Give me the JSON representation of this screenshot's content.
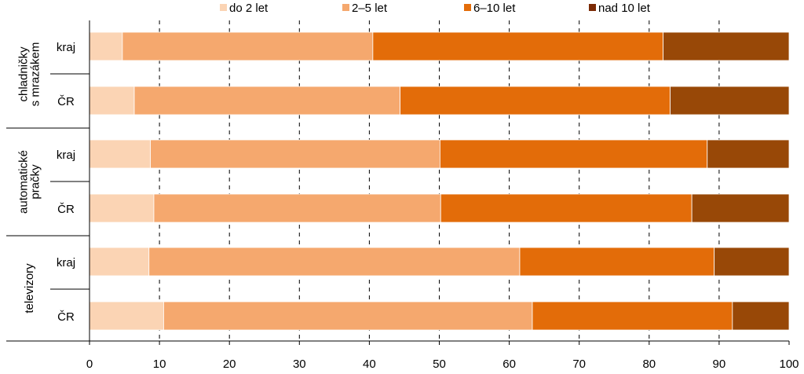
{
  "chart_data": {
    "type": "bar",
    "orientation": "horizontal",
    "stacked": true,
    "title": "",
    "xlabel": "",
    "ylabel": "",
    "xlim": [
      0,
      100
    ],
    "x_ticks": [
      "0",
      "10",
      "20",
      "30",
      "40",
      "50",
      "60",
      "70",
      "80",
      "90",
      "100"
    ],
    "legend_position": "top",
    "groups": [
      {
        "label": "chladničky s mrazákem",
        "label_lines": [
          "chladničky",
          "s mrazákem"
        ],
        "rows": [
          "kraj",
          "ČR"
        ]
      },
      {
        "label": "automatické pračky",
        "label_lines": [
          "automatické",
          "pračky"
        ],
        "rows": [
          "kraj",
          "ČR"
        ]
      },
      {
        "label": "televizory",
        "label_lines": [
          "televizory"
        ],
        "rows": [
          "kraj",
          "ČR"
        ]
      }
    ],
    "categories": [
      "chladničky s mrazákem – kraj",
      "chladničky s mrazákem – ČR",
      "automatické pračky – kraj",
      "automatické pračky – ČR",
      "televizory – kraj",
      "televizory – ČR"
    ],
    "series": [
      {
        "name": "do 2 let",
        "color": "#fbd4b4",
        "values": [
          4.7,
          6.4,
          8.7,
          9.2,
          8.5,
          10.6
        ]
      },
      {
        "name": "2–5 let",
        "color": "#f5a86e",
        "values": [
          35.8,
          38.0,
          41.4,
          41.0,
          53.0,
          52.7
        ]
      },
      {
        "name": "6–10 let",
        "color": "#e36c09",
        "values": [
          41.5,
          38.6,
          38.2,
          35.9,
          27.8,
          28.6
        ]
      },
      {
        "name": "nad 10 let",
        "color": "#984807",
        "values": [
          18.0,
          17.0,
          11.7,
          13.9,
          10.7,
          8.1
        ]
      }
    ],
    "grid": "dashed vertical",
    "legend_marker_color": "#7b2a05"
  }
}
